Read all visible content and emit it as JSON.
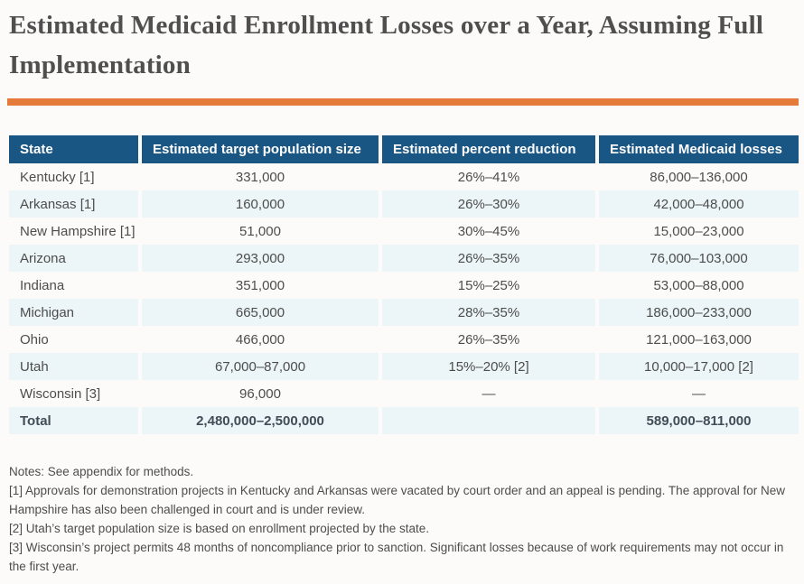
{
  "page": {
    "title": "Estimated Medicaid Enrollment Losses over a Year, Assuming Full Implementation"
  },
  "colors": {
    "accent_orange": "#e57b3b",
    "header_blue": "#1a5684",
    "row_shade": "#ecf5f7",
    "page_bg": "#fcfbf9",
    "title_gray": "#4f4f4f",
    "body_gray": "#4d4d4d",
    "total_gray": "#414d57"
  },
  "table": {
    "columns": [
      {
        "key": "state",
        "label": "State"
      },
      {
        "key": "target-population",
        "label": "Estimated target population size"
      },
      {
        "key": "percent-reduction",
        "label": "Estimated percent reduction"
      },
      {
        "key": "medicaid-losses",
        "label": "Estimated Medicaid losses"
      }
    ],
    "rows": [
      {
        "cells": [
          "Kentucky [1]",
          "331,000",
          "26%–41%",
          "86,000–136,000"
        ]
      },
      {
        "cells": [
          "Arkansas [1]",
          "160,000",
          "26%–30%",
          "42,000–48,000"
        ]
      },
      {
        "cells": [
          "New Hampshire [1]",
          "51,000",
          "30%–45%",
          "15,000–23,000"
        ]
      },
      {
        "cells": [
          "Arizona",
          "293,000",
          "26%–35%",
          "76,000–103,000"
        ]
      },
      {
        "cells": [
          "Indiana",
          "351,000",
          "15%–25%",
          "53,000–88,000"
        ]
      },
      {
        "cells": [
          "Michigan",
          "665,000",
          "28%–35%",
          "186,000–233,000"
        ]
      },
      {
        "cells": [
          "Ohio",
          "466,000",
          "26%–35%",
          "121,000–163,000"
        ]
      },
      {
        "cells": [
          "Utah",
          "67,000–87,000",
          "15%–20% [2]",
          "10,000–17,000 [2]"
        ]
      },
      {
        "cells": [
          "Wisconsin [3]",
          "96,000",
          "—",
          "—"
        ]
      },
      {
        "cells": [
          "Total",
          "2,480,000–2,500,000",
          "",
          "589,000–811,000"
        ],
        "total": true
      }
    ]
  },
  "notes": {
    "lines": [
      "Notes: See appendix for methods.",
      "[1] Approvals for demonstration projects in Kentucky and Arkansas were vacated by court order and an appeal is pending. The approval for New Hampshire has also been challenged in court and is under review.",
      "[2] Utah’s target population size is based on enrollment projected by the state.",
      "[3] Wisconsin’s project permits 48 months of noncompliance prior to sanction. Significant losses because of work requirements may not occur in the first year."
    ]
  }
}
